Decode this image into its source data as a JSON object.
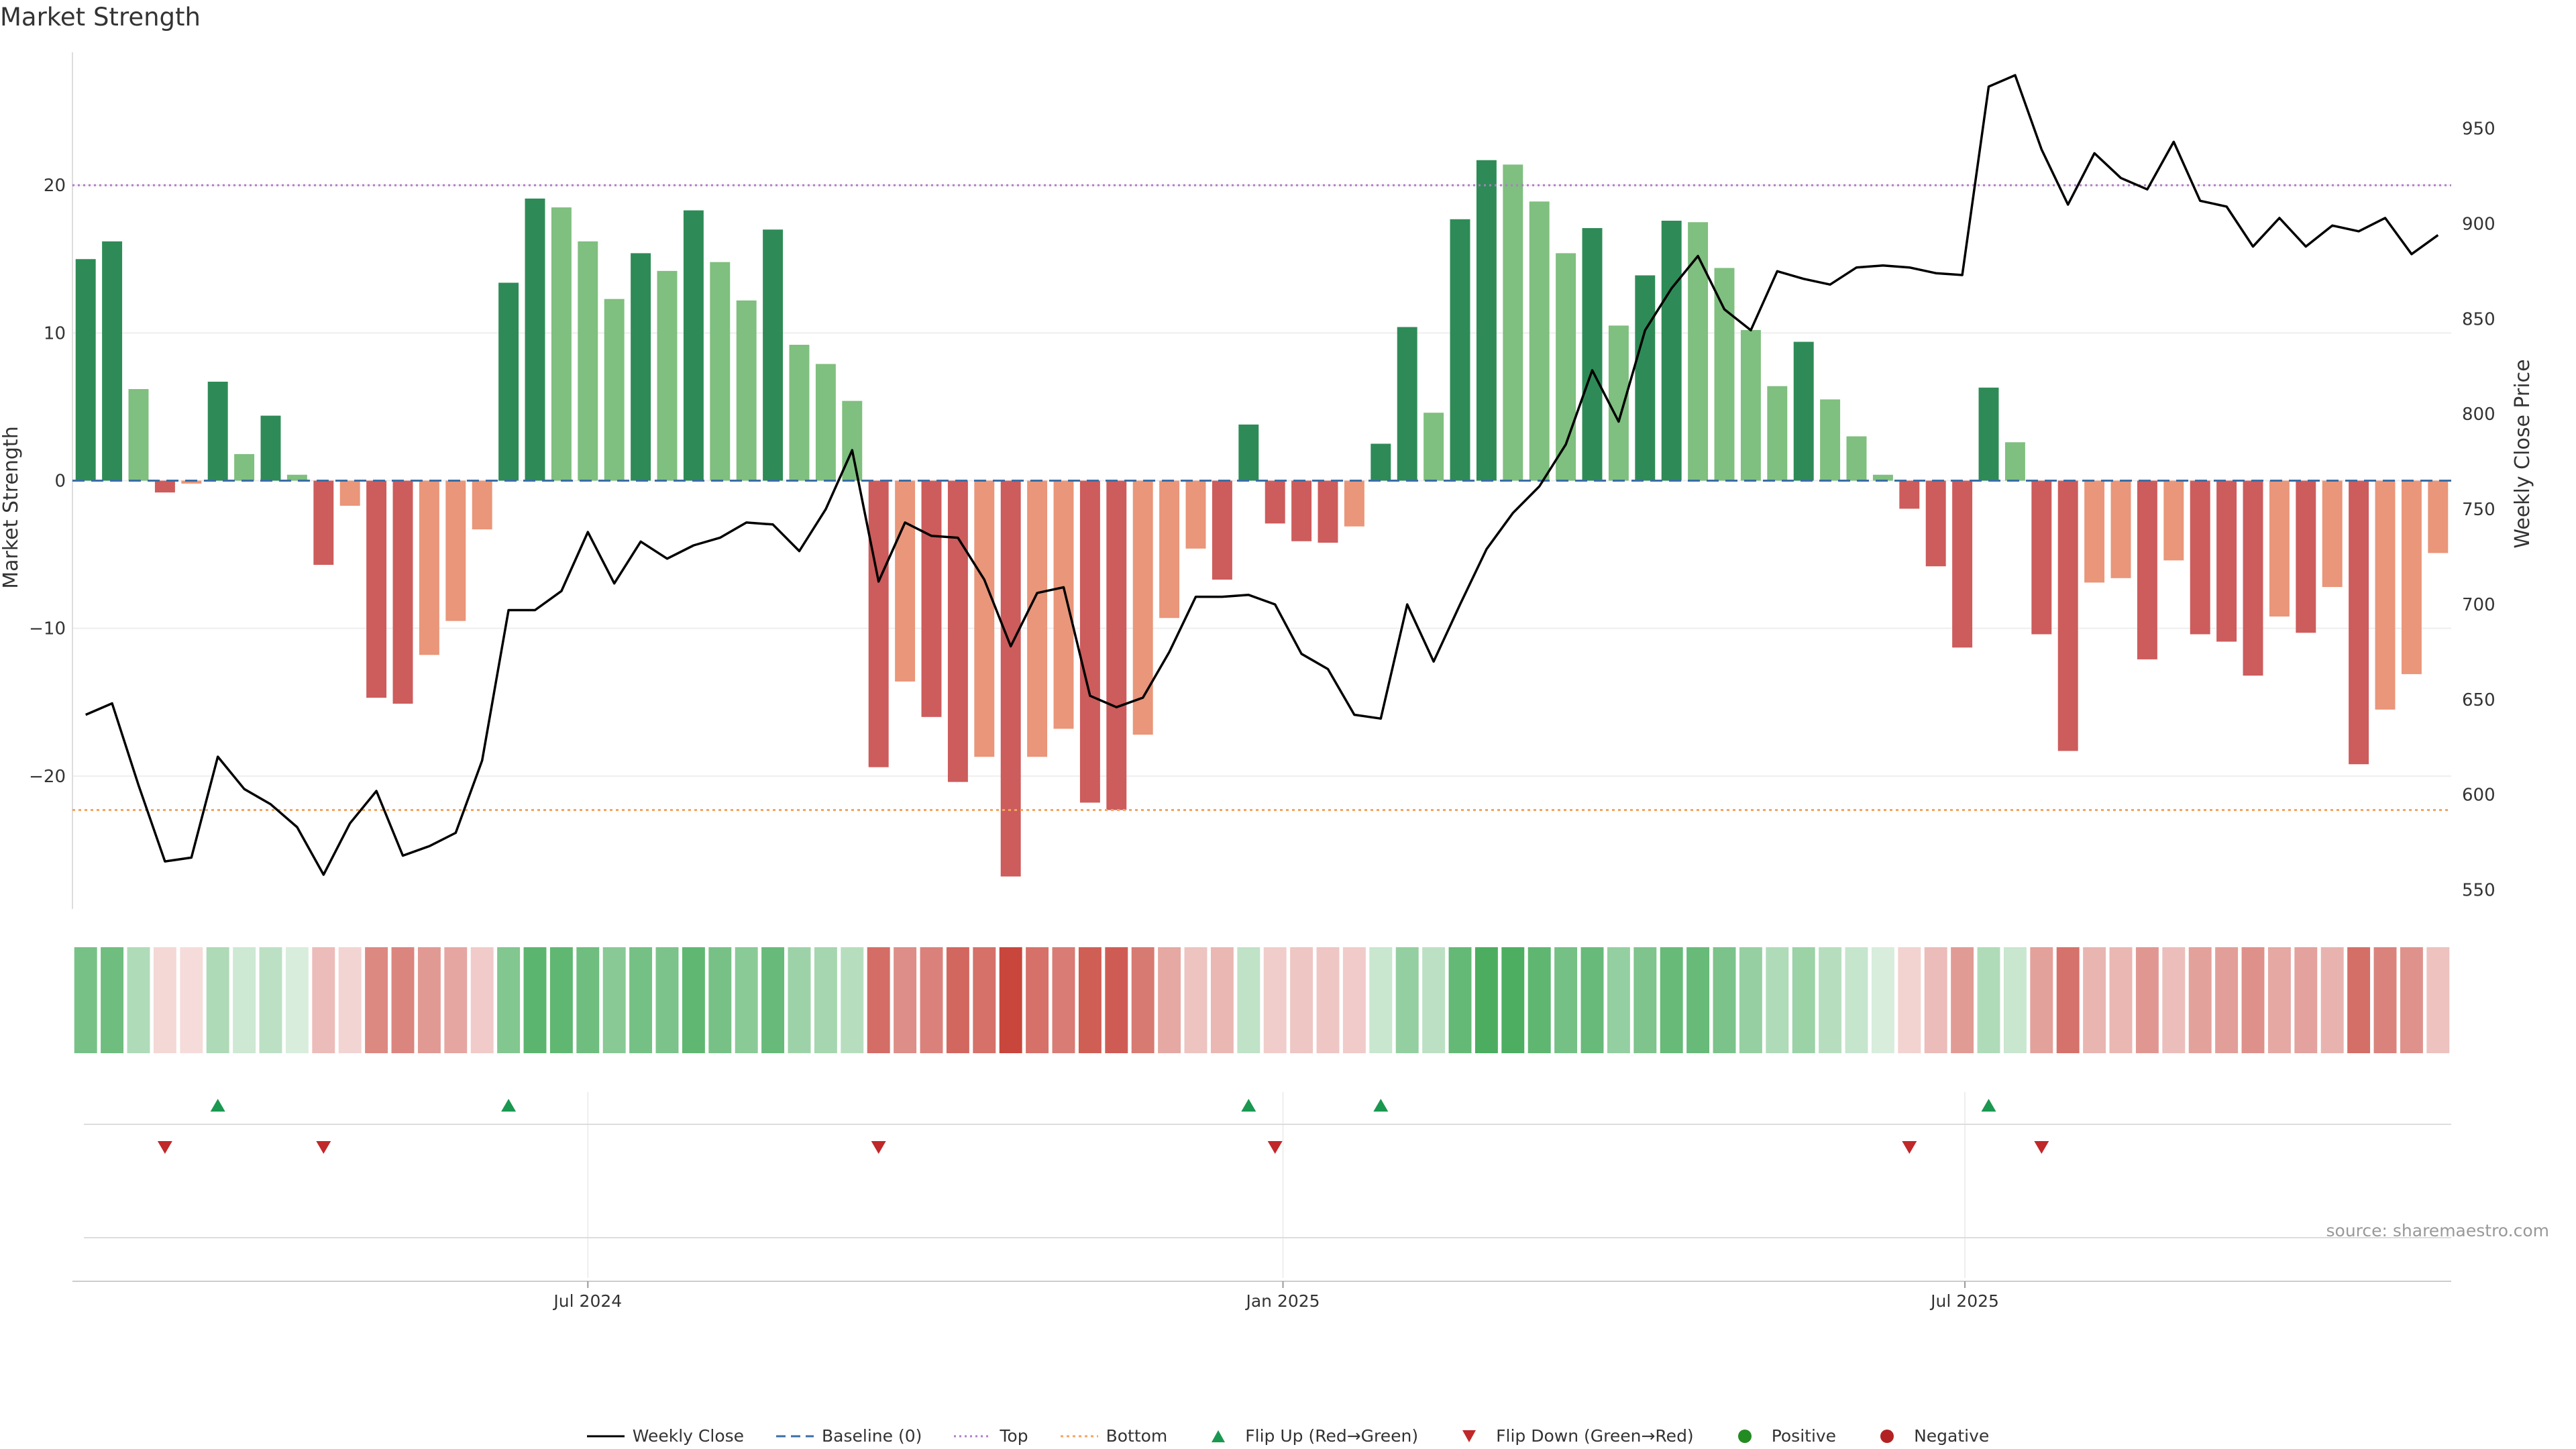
{
  "title": "Market Strength",
  "source": "source: sharemaestro.com",
  "colors": {
    "green_dark": "#2e8b57",
    "green_light": "#7fbf7f",
    "red_dark": "#cd5c5c",
    "red_light": "#e9967a",
    "top_line": "#b07cc6",
    "bottom_line": "#f4a460",
    "baseline": "#3b6ea5",
    "price_line": "#000000"
  },
  "legend": [
    {
      "label": "Weekly Close",
      "kind": "line"
    },
    {
      "label": "Baseline (0)",
      "kind": "dash"
    },
    {
      "label": "Top",
      "kind": "dot-purple"
    },
    {
      "label": "Bottom",
      "kind": "dot-orange"
    },
    {
      "label": "Flip Up (Red→Green)",
      "kind": "tri-up"
    },
    {
      "label": "Flip Down (Green→Red)",
      "kind": "tri-down"
    },
    {
      "label": "Positive",
      "kind": "circle-green"
    },
    {
      "label": "Negative",
      "kind": "circle-red"
    }
  ],
  "chart_data": {
    "type": "bar",
    "xlabel": "",
    "ylabel": "Market Strength",
    "ylabel_right": "Weekly Close Price",
    "ylim": [
      -29,
      29
    ],
    "ylim_right": [
      540,
      990
    ],
    "yticks": [
      -20,
      -10,
      0,
      10,
      20
    ],
    "yticks_right": [
      550,
      600,
      650,
      700,
      750,
      800,
      850,
      900,
      950
    ],
    "top_level": 20,
    "bottom_level": -22.3,
    "x_ticks": [
      {
        "label": "Jul 2024",
        "index": 19.0
      },
      {
        "label": "Jan 2025",
        "index": 45.3
      },
      {
        "label": "Jul 2025",
        "index": 71.1
      }
    ],
    "series": [
      {
        "name": "Market Strength",
        "values": [
          15,
          16.2,
          6.2,
          -0.8,
          -0.2,
          6.7,
          1.8,
          4.4,
          0.4,
          -5.7,
          -1.7,
          -14.7,
          -15.1,
          -11.8,
          -9.5,
          -3.3,
          13.4,
          19.1,
          18.5,
          16.2,
          12.3,
          15.4,
          14.2,
          18.3,
          14.8,
          12.2,
          17,
          9.2,
          7.9,
          5.4,
          -19.4,
          -13.6,
          -16,
          -20.4,
          -18.7,
          -26.8,
          -18.7,
          -16.8,
          -21.8,
          -22.3,
          -17.2,
          -9.3,
          -4.6,
          -6.7,
          3.8,
          -2.9,
          -4.1,
          -4.2,
          -3.1,
          2.5,
          10.4,
          4.6,
          17.7,
          21.7,
          21.4,
          18.9,
          15.4,
          17.1,
          10.5,
          13.9,
          17.6,
          17.5,
          14.4,
          10.2,
          6.4,
          9.4,
          5.5,
          3,
          0.4,
          -1.9,
          -5.8,
          -11.3,
          6.3,
          2.6,
          -10.4,
          -18.3,
          -6.9,
          -6.6,
          -12.1,
          -5.4,
          -10.4,
          -10.9,
          -13.2,
          -9.2,
          -10.3,
          -7.2,
          -19.2,
          -15.5,
          -13.1,
          -4.9
        ]
      },
      {
        "name": "Weekly Close",
        "values": [
          642,
          648,
          605,
          565,
          567,
          620,
          603,
          595,
          583,
          558,
          585,
          602,
          568,
          573,
          580,
          618,
          697,
          697,
          707,
          738,
          711,
          733,
          724,
          731,
          735,
          743,
          742,
          728,
          750,
          781,
          712,
          743,
          736,
          735,
          713,
          678,
          706,
          709,
          652,
          646,
          651,
          675,
          704,
          704,
          705,
          700,
          674,
          666,
          642,
          640,
          700,
          670,
          700,
          729,
          748,
          762,
          784,
          823,
          796,
          844,
          866,
          883,
          855,
          844,
          875,
          871,
          868,
          877,
          878,
          877,
          874,
          873,
          972,
          978,
          939,
          910,
          937,
          924,
          918,
          943,
          912,
          909,
          888,
          903,
          888,
          899,
          896,
          903,
          884,
          894
        ]
      }
    ],
    "flip_up_indices": [
      5,
      16,
      44,
      49,
      72
    ],
    "flip_down_indices": [
      3,
      9,
      30,
      45,
      69,
      74
    ]
  }
}
